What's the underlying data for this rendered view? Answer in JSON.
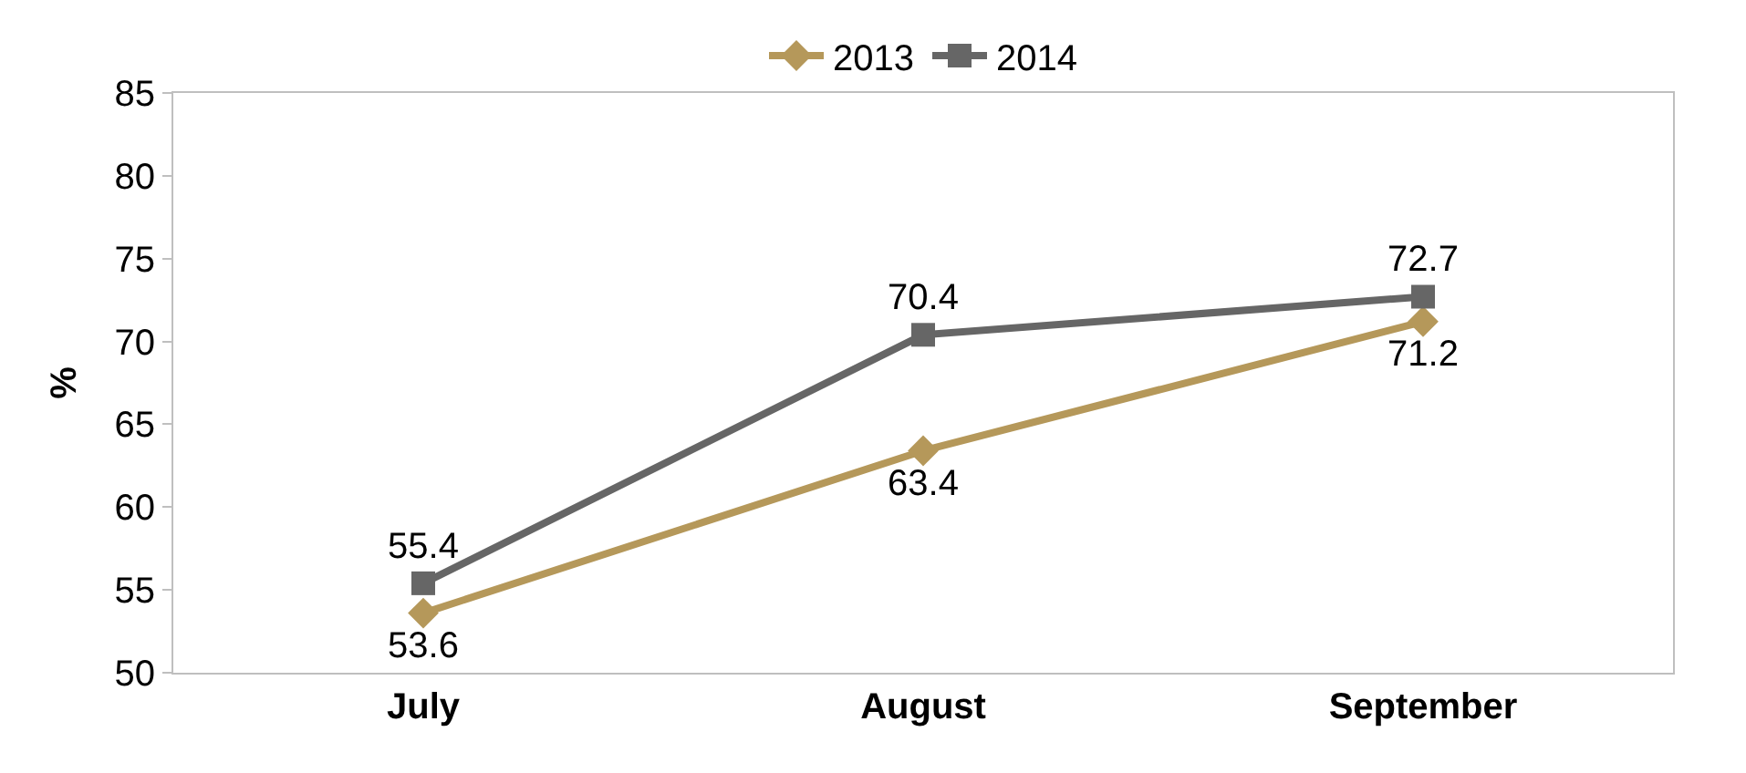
{
  "chart_data": {
    "type": "line",
    "ylabel": "%",
    "categories": [
      "July",
      "August",
      "September"
    ],
    "series": [
      {
        "name": "2013",
        "color": "#b5985a",
        "marker": "diamond",
        "values": [
          53.6,
          63.4,
          71.2
        ]
      },
      {
        "name": "2014",
        "color": "#666666",
        "marker": "square",
        "values": [
          55.4,
          70.4,
          72.7
        ]
      }
    ],
    "ylim": [
      50,
      85
    ],
    "yticks": [
      50,
      55,
      60,
      65,
      70,
      75,
      80,
      85
    ],
    "data_labels": true,
    "legend": "top",
    "line_style": "solid"
  }
}
